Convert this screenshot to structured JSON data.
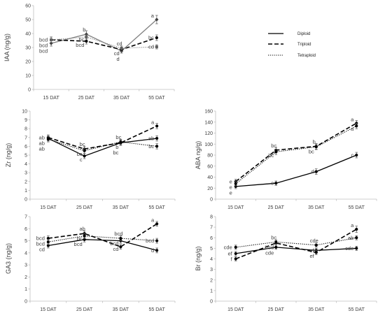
{
  "legend": {
    "items": [
      {
        "label": "Diploid",
        "dash": "",
        "width": 1.3,
        "color": "#000000"
      },
      {
        "label": "Triploid",
        "dash": "6,3",
        "width": 1.6,
        "color": "#000000"
      },
      {
        "label": "Tetraploid",
        "dash": "1.2,1.6",
        "width": 1.1,
        "color": "#000000"
      }
    ]
  },
  "chart_data": [
    {
      "type": "line",
      "id": "iaa",
      "ylabel": "IAA (ng/g)",
      "categories": [
        "15 DAT",
        "25 DAT",
        "35 DAT",
        "55 DAT"
      ],
      "yticks": [
        0,
        10,
        20,
        30,
        40,
        50,
        60
      ],
      "ylim": [
        0,
        60
      ],
      "series": [
        {
          "name": "Diploid",
          "values": [
            33,
            39.5,
            27.5,
            50
          ],
          "err": [
            2,
            2.5,
            1.5,
            3
          ],
          "letters": [
            "bcd",
            "b",
            "d",
            "a"
          ],
          "line_color": "#808080",
          "marker": "diamond"
        },
        {
          "name": "Triploid",
          "values": [
            35.5,
            34.5,
            28.5,
            37
          ],
          "err": [
            2,
            2,
            1.5,
            2
          ],
          "letters": [
            "bcd",
            "bcd",
            "cd",
            "bc"
          ],
          "line_color": "#000000",
          "marker": "circle"
        },
        {
          "name": "Tetraploid",
          "values": [
            35.5,
            37.5,
            29.5,
            30.5
          ],
          "err": [
            2,
            2,
            1.5,
            1.5
          ],
          "letters": [
            "bcd",
            "bc",
            "cd",
            "cd"
          ],
          "line_color": "#808080",
          "marker": "square"
        }
      ]
    },
    {
      "type": "line",
      "id": "zr",
      "ylabel": "Zr (ng/g)",
      "categories": [
        "15 DAT",
        "25 DAT",
        "35 DAT",
        "55 DAT"
      ],
      "yticks": [
        0,
        1,
        2,
        3,
        4,
        5,
        6,
        7,
        8,
        9,
        10
      ],
      "ylim": [
        0,
        10
      ],
      "series": [
        {
          "name": "Diploid",
          "values": [
            6.9,
            4.9,
            6.4,
            6.9
          ],
          "err": [
            0.3,
            0.3,
            0.3,
            0.3
          ],
          "letters": [
            "ab",
            "c",
            "b",
            "ab"
          ],
          "line_color": "#000000",
          "marker": "circle"
        },
        {
          "name": "Triploid",
          "values": [
            7,
            5.7,
            6.4,
            8.3
          ],
          "err": [
            0.3,
            0.3,
            0.3,
            0.3
          ],
          "letters": [
            "ab",
            "bc",
            "bc",
            "a"
          ],
          "line_color": "#000000",
          "marker": "circle"
        },
        {
          "name": "Tetraploid",
          "values": [
            6.8,
            5.5,
            6.5,
            6
          ],
          "err": [
            0.3,
            0.3,
            0.3,
            0.3
          ],
          "letters": [
            "ab",
            "bc",
            "bc",
            "bc"
          ],
          "line_color": "#000000",
          "marker": "circle"
        }
      ]
    },
    {
      "type": "line",
      "id": "aba",
      "ylabel": "ABA ng/g)",
      "categories": [
        "15 DAT",
        "25 DAT",
        "35 DAT",
        "55 DAT"
      ],
      "yticks": [
        0,
        20,
        40,
        60,
        80,
        100,
        120,
        140,
        160
      ],
      "ylim": [
        0,
        160
      ],
      "series": [
        {
          "name": "Diploid",
          "values": [
            23,
            29,
            50,
            80
          ],
          "err": [
            4,
            4,
            5,
            5
          ],
          "letters": [
            "e",
            "e",
            "d",
            "c"
          ],
          "line_color": "#000000",
          "marker": "circle"
        },
        {
          "name": "Triploid",
          "values": [
            32,
            89,
            96,
            138
          ],
          "err": [
            4,
            5,
            5,
            5
          ],
          "letters": [
            "e",
            "bc",
            "b",
            "a"
          ],
          "line_color": "#000000",
          "marker": "circle"
        },
        {
          "name": "Tetraploid",
          "values": [
            28,
            86,
            95,
            133
          ],
          "err": [
            4,
            5,
            5,
            5
          ],
          "letters": [
            "e",
            "bc",
            "bc",
            "a"
          ],
          "line_color": "#000000",
          "marker": "circle"
        }
      ]
    },
    {
      "type": "line",
      "id": "ga3",
      "ylabel": "GA3 (ng/g)",
      "categories": [
        "15 DAT",
        "25 DAT",
        "35 DAT",
        "55 DAT"
      ],
      "yticks": [
        0,
        1,
        2,
        3,
        4,
        5,
        6,
        7
      ],
      "ylim": [
        0,
        7
      ],
      "series": [
        {
          "name": "Diploid",
          "values": [
            4.6,
            5.1,
            5,
            4.2
          ],
          "err": [
            0.2,
            0.2,
            0.2,
            0.2
          ],
          "letters": [
            "cd",
            "bcd",
            "bcd",
            "d"
          ],
          "line_color": "#000000",
          "marker": "circle"
        },
        {
          "name": "Triploid",
          "values": [
            5.2,
            5.6,
            4.5,
            6.4
          ],
          "err": [
            0.2,
            0.2,
            0.2,
            0.2
          ],
          "letters": [
            "bcd",
            "ab",
            "cd",
            "a"
          ],
          "line_color": "#000000",
          "marker": "circle"
        },
        {
          "name": "Tetraploid",
          "values": [
            4.9,
            5.4,
            5.2,
            5
          ],
          "err": [
            0.2,
            0.2,
            0.2,
            0.2
          ],
          "letters": [
            "bcd",
            "bc",
            "bcd",
            "bcd"
          ],
          "line_color": "#000000",
          "marker": "circle"
        }
      ]
    },
    {
      "type": "line",
      "id": "br",
      "ylabel": "Br (ng/g)",
      "categories": [
        "15 DAT",
        "25 DAT",
        "35 DAT",
        "55 DAT"
      ],
      "yticks": [
        0,
        1,
        2,
        3,
        4,
        5,
        6,
        7,
        8
      ],
      "ylim": [
        0,
        8
      ],
      "series": [
        {
          "name": "Diploid",
          "values": [
            4.5,
            5.1,
            4.8,
            5
          ],
          "err": [
            0.2,
            0.2,
            0.2,
            0.2
          ],
          "letters": [
            "ef",
            "cde",
            "ef",
            "cde"
          ],
          "line_color": "#000000",
          "marker": "circle"
        },
        {
          "name": "Triploid",
          "values": [
            4,
            5.5,
            4.6,
            6.8
          ],
          "err": [
            0.2,
            0.2,
            0.2,
            0.3
          ],
          "letters": [
            "f",
            "bcd",
            "ef",
            "a"
          ],
          "line_color": "#000000",
          "marker": "circle"
        },
        {
          "name": "Tetraploid",
          "values": [
            5.1,
            5.6,
            5.3,
            6
          ],
          "err": [
            0.2,
            0.2,
            0.2,
            0.2
          ],
          "letters": [
            "cde",
            "bc",
            "cde",
            "ab"
          ],
          "line_color": "#000000",
          "marker": "circle"
        }
      ]
    }
  ]
}
